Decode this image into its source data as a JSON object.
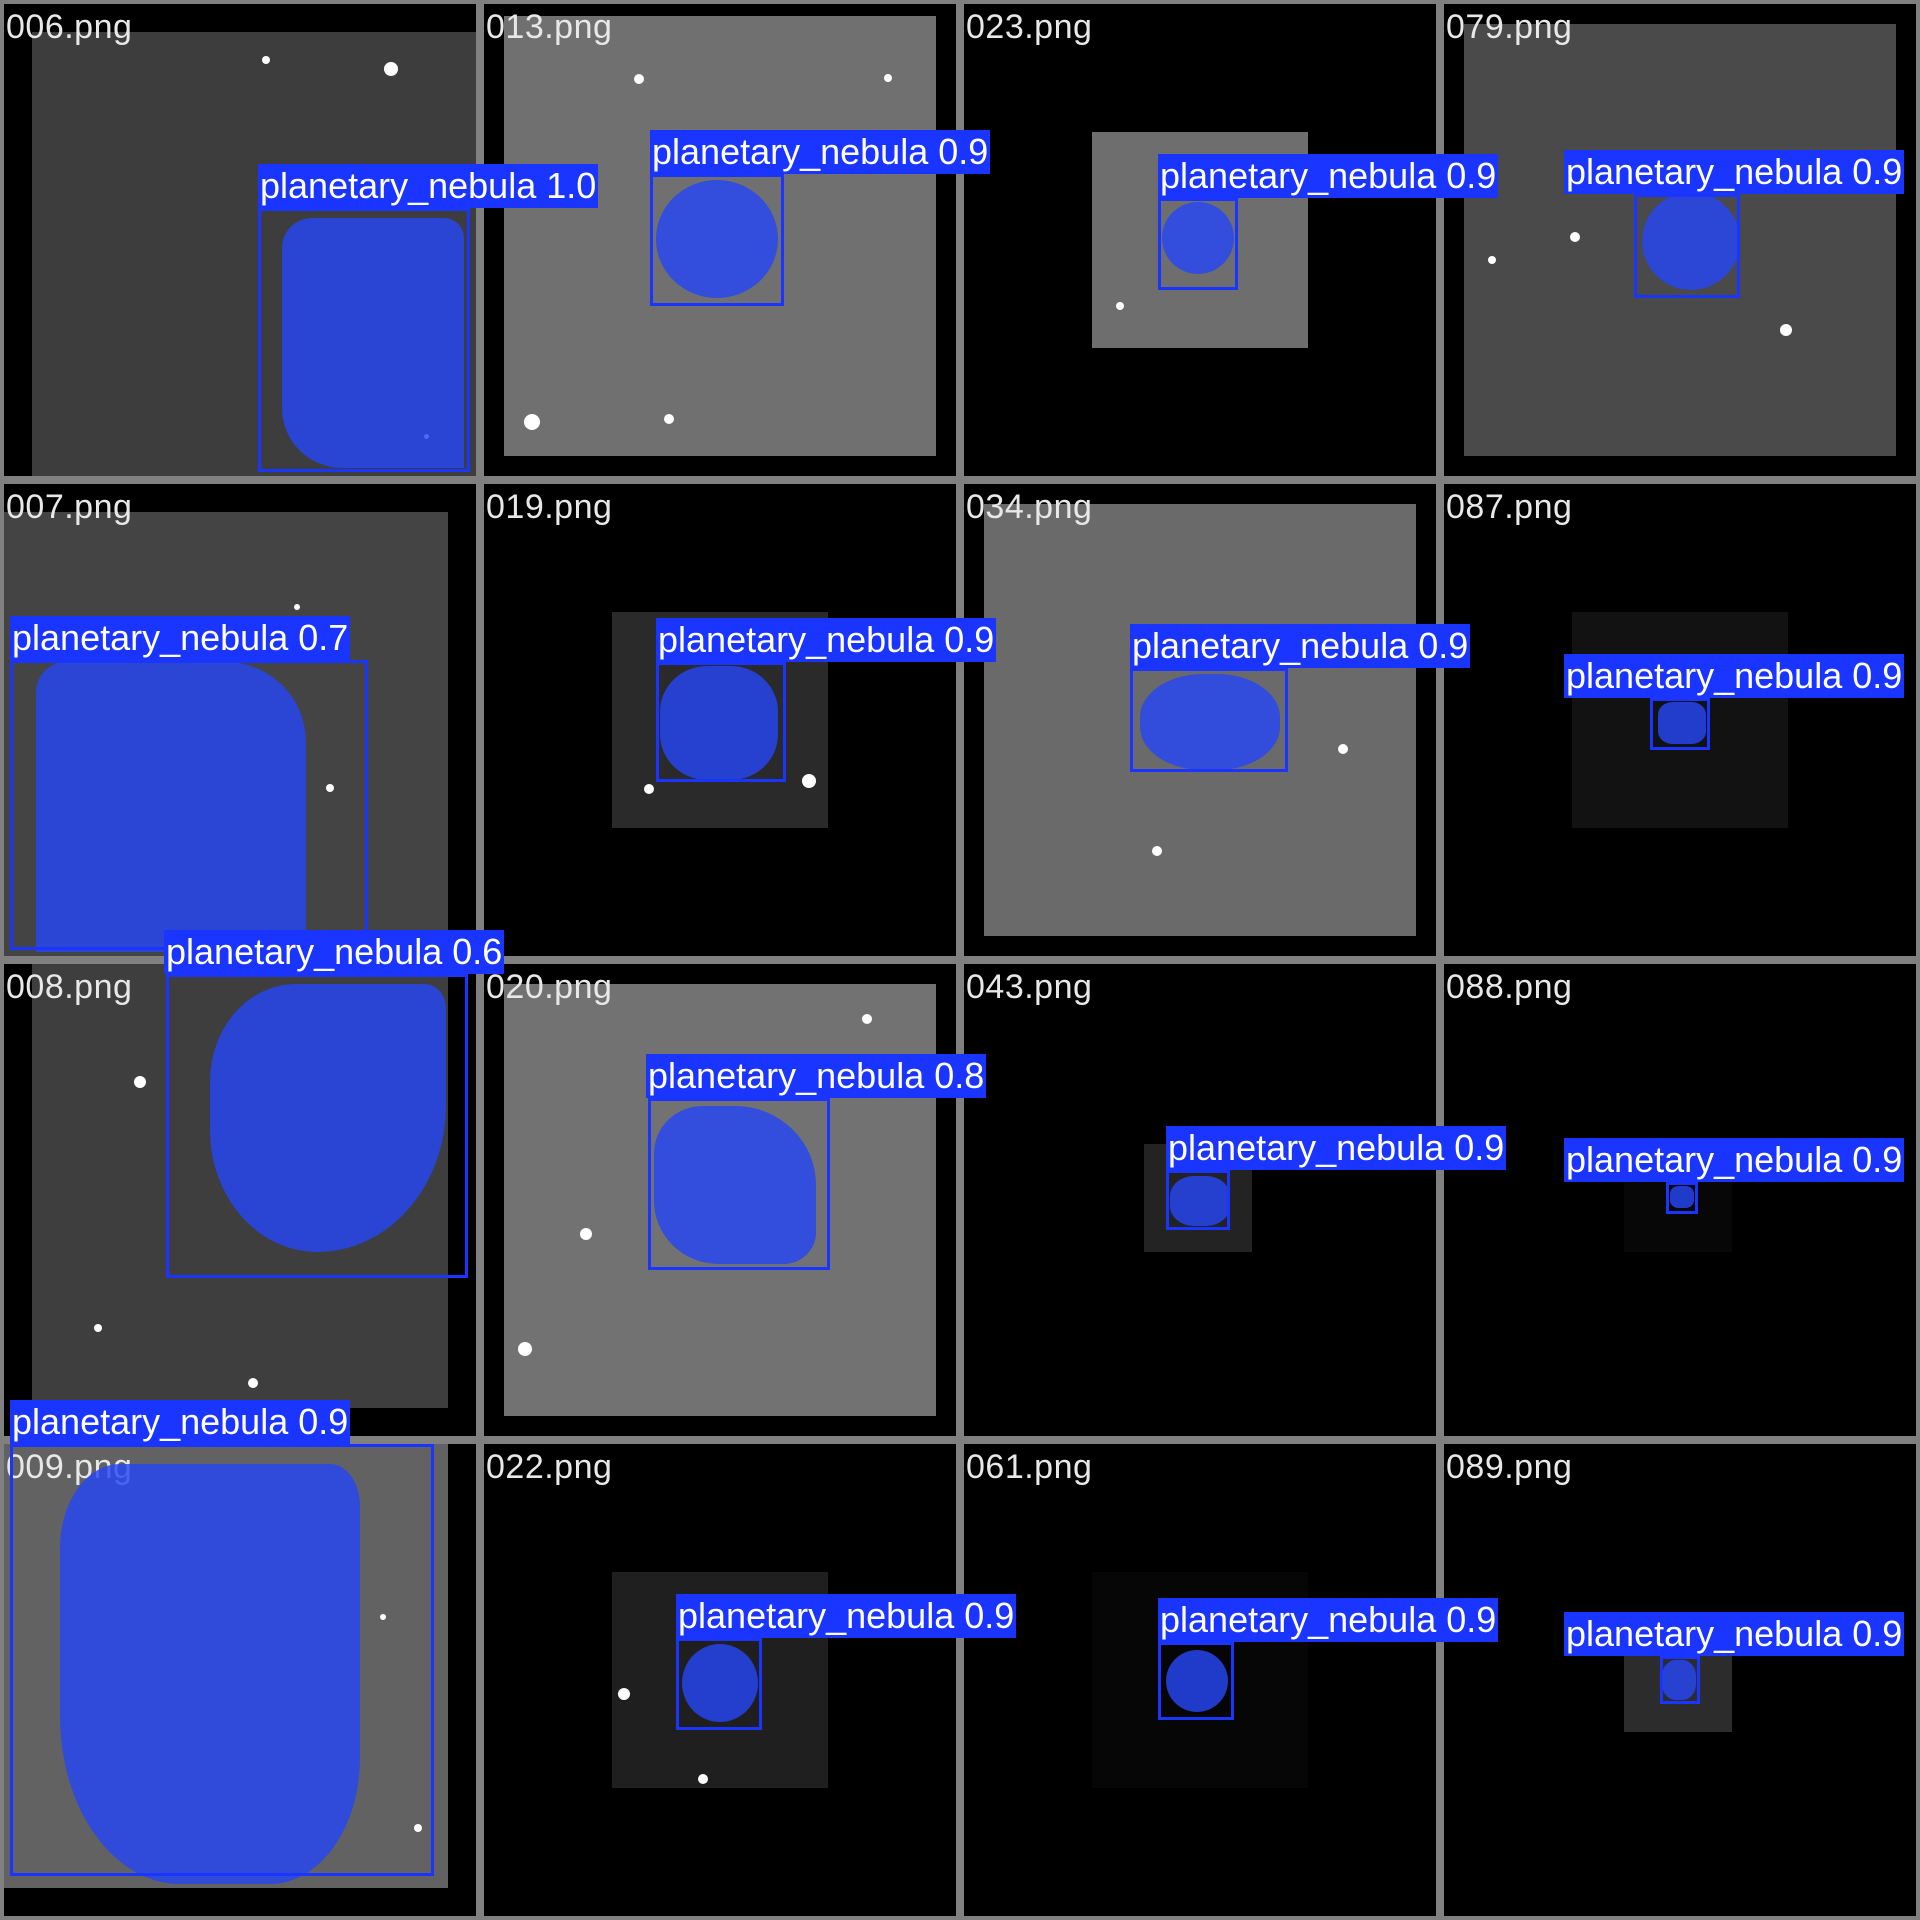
{
  "tiles": [
    {
      "file": "006.png",
      "label": "planetary_nebula 1.0"
    },
    {
      "file": "013.png",
      "label": "planetary_nebula 0.9"
    },
    {
      "file": "023.png",
      "label": "planetary_nebula 0.9"
    },
    {
      "file": "079.png",
      "label": "planetary_nebula 0.9"
    },
    {
      "file": "007.png",
      "label": "planetary_nebula 0.7"
    },
    {
      "file": "019.png",
      "label": "planetary_nebula 0.9"
    },
    {
      "file": "034.png",
      "label": "planetary_nebula 0.9"
    },
    {
      "file": "087.png",
      "label": "planetary_nebula 0.9"
    },
    {
      "file": "008.png",
      "label": "planetary_nebula 0.6"
    },
    {
      "file": "020.png",
      "label": "planetary_nebula 0.8"
    },
    {
      "file": "043.png",
      "label": "planetary_nebula 0.9"
    },
    {
      "file": "088.png",
      "label": "planetary_nebula 0.9"
    },
    {
      "file": "009.png",
      "label": "planetary_nebula 0.9"
    },
    {
      "file": "022.png",
      "label": "planetary_nebula 0.9"
    },
    {
      "file": "061.png",
      "label": "planetary_nebula 0.9"
    },
    {
      "file": "089.png",
      "label": "planetary_nebula 0.9"
    }
  ],
  "colors": {
    "mask": "#2646f5",
    "box": "#1a35ff",
    "grid_background": "#808080"
  }
}
